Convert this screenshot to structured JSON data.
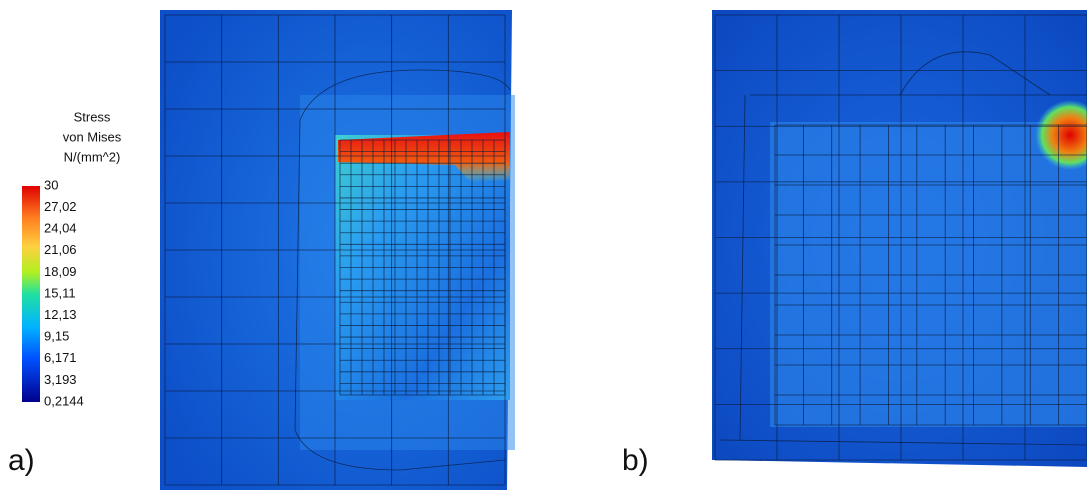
{
  "legend": {
    "title": [
      "Stress",
      "von Mises",
      "N/(mm^2)"
    ],
    "ticks": [
      "30",
      "27,02",
      "24,04",
      "21,06",
      "18,09",
      "15,11",
      "12,13",
      "9,15",
      "6,171",
      "3,193",
      "0,2144"
    ]
  },
  "panels": [
    {
      "label": "a)"
    },
    {
      "label": "b)"
    }
  ]
}
